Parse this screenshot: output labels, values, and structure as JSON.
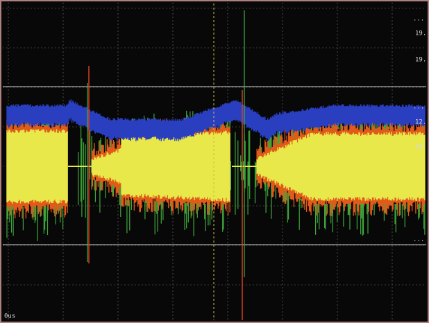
{
  "screen": {
    "labels": {
      "top_right_1": "...",
      "top_right_2": "19.",
      "top_right_3": "19.",
      "mid_right_1": "...",
      "mid_right_2": "12.",
      "mid_right_3": "10.",
      "low_right": "...",
      "time_label": "0us"
    }
  }
}
